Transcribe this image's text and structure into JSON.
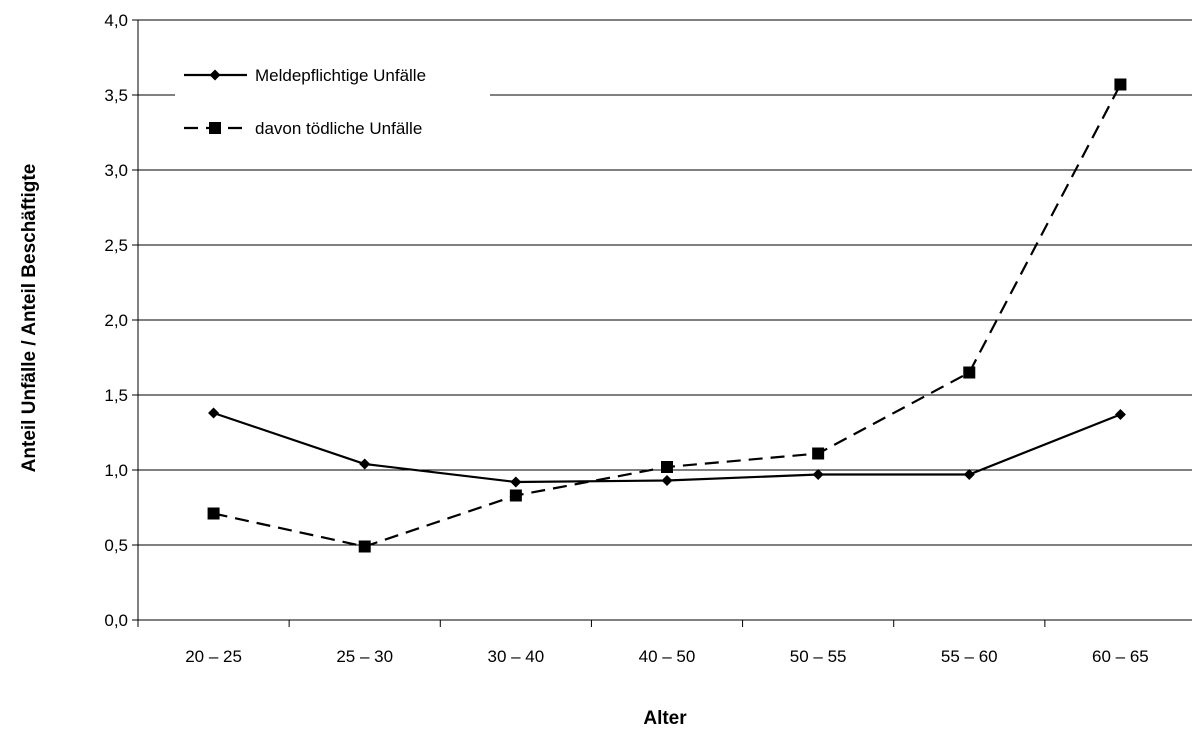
{
  "chart_data": {
    "type": "line",
    "categories": [
      "20 – 25",
      "25 – 30",
      "30 – 40",
      "40 – 50",
      "50 – 55",
      "55 – 60",
      "60 – 65"
    ],
    "series": [
      {
        "name": "Meldepflichtige Unfälle",
        "values": [
          1.38,
          1.04,
          0.92,
          0.93,
          0.97,
          0.97,
          1.37
        ],
        "marker": "diamond",
        "line": "solid",
        "color": "#000000"
      },
      {
        "name": "davon tödliche Unfälle",
        "values": [
          0.71,
          0.49,
          0.83,
          1.02,
          1.11,
          1.65,
          3.57
        ],
        "marker": "square",
        "line": "dashed",
        "color": "#000000"
      }
    ],
    "xlabel": "Alter",
    "ylabel": "Anteil Unfälle / Anteil Beschäftigte",
    "ylim": [
      0,
      4
    ],
    "yticks": [
      "0,0",
      "0,5",
      "1,0",
      "1,5",
      "2,0",
      "2,5",
      "3,0",
      "3,5",
      "4,0"
    ],
    "grid": true,
    "legend_position": "top-left"
  }
}
